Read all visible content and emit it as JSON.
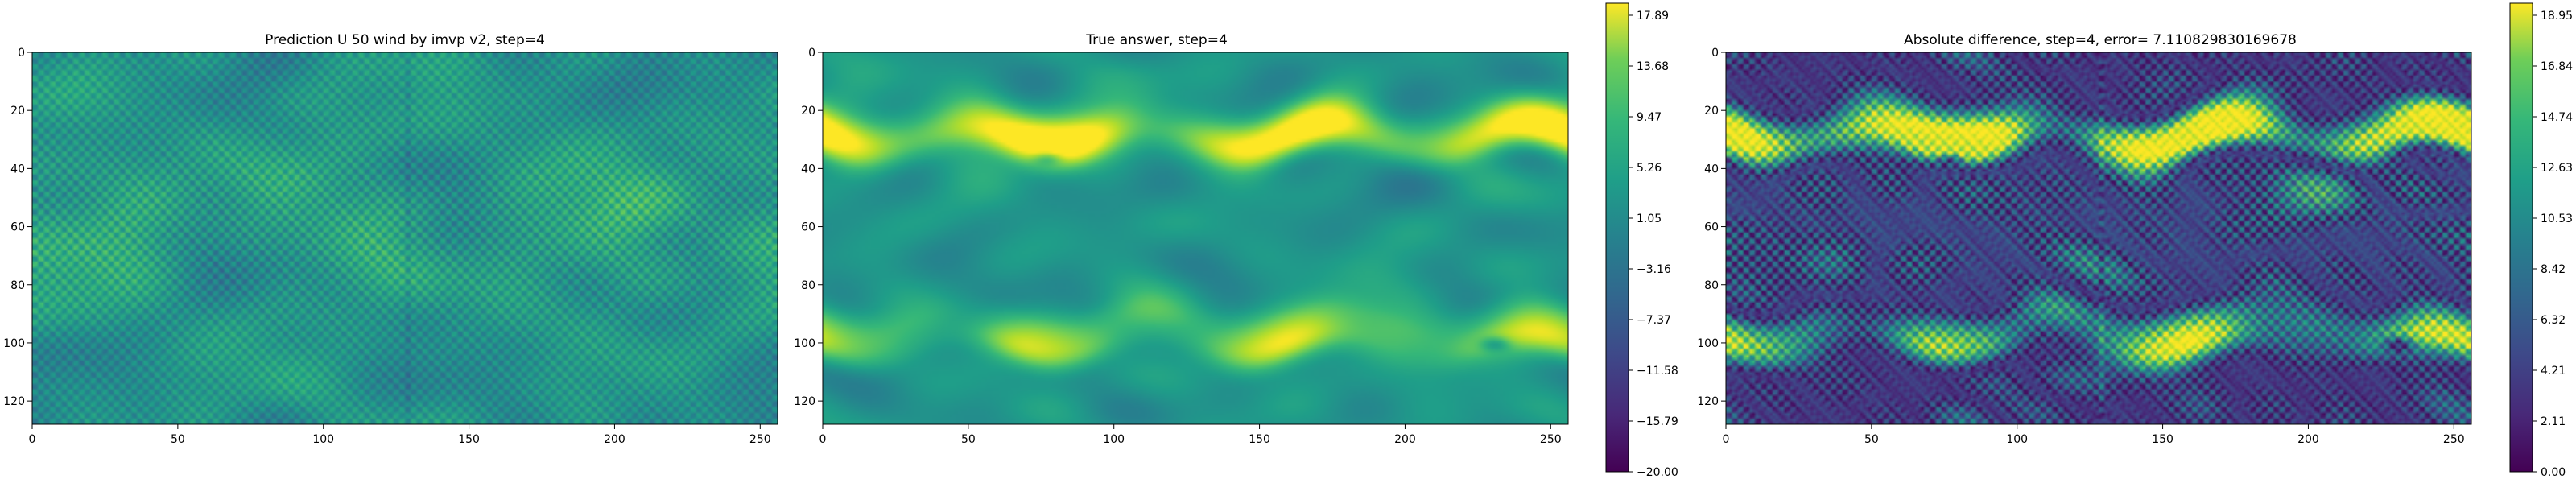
{
  "chart_data": [
    {
      "type": "heatmap",
      "title": "Prediction U 50 wind by imvp v2, step=4",
      "x_ticks": [
        0,
        50,
        100,
        150,
        200,
        250
      ],
      "y_ticks": [
        0,
        20,
        40,
        60,
        80,
        100,
        120
      ],
      "xlim": [
        0,
        256
      ],
      "ylim": [
        128,
        0
      ],
      "grid_size": [
        256,
        128
      ],
      "colormap": "viridis",
      "value_range": [
        -20.0,
        17.89
      ],
      "description": "gridded field with checkerboard artifacts"
    },
    {
      "type": "heatmap",
      "title": "True answer, step=4",
      "x_ticks": [
        0,
        50,
        100,
        150,
        200,
        250
      ],
      "y_ticks": [
        0,
        20,
        40,
        60,
        80,
        100,
        120
      ],
      "xlim": [
        0,
        256
      ],
      "ylim": [
        128,
        0
      ],
      "grid_size": [
        256,
        128
      ],
      "colormap": "viridis",
      "value_range": [
        -20.0,
        17.89
      ],
      "colorbar_ticks": [
        "17.89",
        "13.68",
        "9.47",
        "5.26",
        "1.05",
        "−3.16",
        "−7.37",
        "−11.58",
        "−15.79",
        "−20.00"
      ]
    },
    {
      "type": "heatmap",
      "title": "Absolute difference, step=4, error= 7.110829830169678",
      "x_ticks": [
        0,
        50,
        100,
        150,
        200,
        250
      ],
      "y_ticks": [
        0,
        20,
        40,
        60,
        80,
        100,
        120
      ],
      "xlim": [
        0,
        256
      ],
      "ylim": [
        128,
        0
      ],
      "grid_size": [
        256,
        128
      ],
      "colormap": "viridis",
      "value_range": [
        0.0,
        18.95
      ],
      "colorbar_ticks": [
        "18.95",
        "16.84",
        "14.74",
        "12.63",
        "10.53",
        "8.42",
        "6.32",
        "4.21",
        "2.11",
        "0.00"
      ]
    }
  ],
  "colors": {
    "viridis_low": "#440154",
    "viridis_mid": "#21908d",
    "viridis_high": "#fde725"
  }
}
